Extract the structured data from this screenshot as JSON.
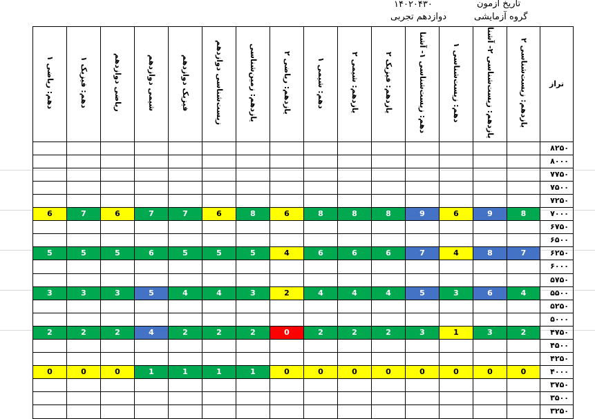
{
  "header": {
    "exam_date_label": "تاریخ آزمون",
    "exam_date": "۱۴۰۲۰۴۳۰",
    "group_label": "گروه آزمایشی",
    "group": "دوازدهم تجربی"
  },
  "table": {
    "level_header": "تراز",
    "subjects": [
      "یازدهم: زیست‌شناسی ۲",
      "یازدهم: زیست‌شناسی ۲- آشنا",
      "دهم: زیست‌شناسی ۱",
      "دهم: زیست‌شناسی ۱- آشنا",
      "یازدهم: فیزیک ۲",
      "یازدهم: شیمی ۲",
      "دهم: شیمی ۱",
      "یازدهم: ریاضی ۲",
      "یازدهم: زمین‌شناسی",
      "زیست‌شناسی دوازدهم",
      "فیزیک دوازدهم",
      "شیمی دوازدهم",
      "ریاضی دوازدهم",
      "دهم: فیزیک ۱",
      "دهم: ریاضی ۱"
    ],
    "rows": [
      {
        "level": "۸۲۵۰",
        "cells": []
      },
      {
        "level": "۸۰۰۰",
        "cells": []
      },
      {
        "level": "۷۷۵۰",
        "cells": []
      },
      {
        "level": "۷۵۰۰",
        "cells": []
      },
      {
        "level": "۷۲۵۰",
        "cells": []
      },
      {
        "level": "۷۰۰۰",
        "cells": [
          {
            "v": "8",
            "c": "g"
          },
          {
            "v": "9",
            "c": "b"
          },
          {
            "v": "6",
            "c": "y"
          },
          {
            "v": "9",
            "c": "b"
          },
          {
            "v": "8",
            "c": "g"
          },
          {
            "v": "8",
            "c": "g"
          },
          {
            "v": "8",
            "c": "g"
          },
          {
            "v": "6",
            "c": "y"
          },
          {
            "v": "8",
            "c": "g"
          },
          {
            "v": "6",
            "c": "y"
          },
          {
            "v": "7",
            "c": "g"
          },
          {
            "v": "7",
            "c": "g"
          },
          {
            "v": "6",
            "c": "y"
          },
          {
            "v": "7",
            "c": "g"
          },
          {
            "v": "6",
            "c": "y"
          }
        ]
      },
      {
        "level": "۶۷۵۰",
        "cells": []
      },
      {
        "level": "۶۵۰۰",
        "cells": []
      },
      {
        "level": "۶۲۵۰",
        "cells": [
          {
            "v": "7",
            "c": "b"
          },
          {
            "v": "8",
            "c": "b"
          },
          {
            "v": "4",
            "c": "y"
          },
          {
            "v": "7",
            "c": "b"
          },
          {
            "v": "6",
            "c": "g"
          },
          {
            "v": "6",
            "c": "g"
          },
          {
            "v": "6",
            "c": "g"
          },
          {
            "v": "4",
            "c": "y"
          },
          {
            "v": "5",
            "c": "g"
          },
          {
            "v": "5",
            "c": "g"
          },
          {
            "v": "5",
            "c": "g"
          },
          {
            "v": "6",
            "c": "g"
          },
          {
            "v": "5",
            "c": "g"
          },
          {
            "v": "5",
            "c": "g"
          },
          {
            "v": "5",
            "c": "g"
          }
        ]
      },
      {
        "level": "۶۰۰۰",
        "cells": []
      },
      {
        "level": "۵۷۵۰",
        "cells": []
      },
      {
        "level": "۵۵۰۰",
        "cells": [
          {
            "v": "4",
            "c": "g"
          },
          {
            "v": "6",
            "c": "b"
          },
          {
            "v": "3",
            "c": "g"
          },
          {
            "v": "5",
            "c": "b"
          },
          {
            "v": "4",
            "c": "g"
          },
          {
            "v": "4",
            "c": "g"
          },
          {
            "v": "4",
            "c": "g"
          },
          {
            "v": "2",
            "c": "y"
          },
          {
            "v": "3",
            "c": "g"
          },
          {
            "v": "4",
            "c": "g"
          },
          {
            "v": "4",
            "c": "g"
          },
          {
            "v": "5",
            "c": "b"
          },
          {
            "v": "3",
            "c": "g"
          },
          {
            "v": "3",
            "c": "g"
          },
          {
            "v": "3",
            "c": "g"
          }
        ]
      },
      {
        "level": "۵۲۵۰",
        "cells": []
      },
      {
        "level": "۵۰۰۰",
        "cells": []
      },
      {
        "level": "۴۷۵۰",
        "cells": [
          {
            "v": "2",
            "c": "g"
          },
          {
            "v": "3",
            "c": "g"
          },
          {
            "v": "1",
            "c": "y"
          },
          {
            "v": "3",
            "c": "g"
          },
          {
            "v": "2",
            "c": "g"
          },
          {
            "v": "2",
            "c": "g"
          },
          {
            "v": "2",
            "c": "g"
          },
          {
            "v": "0",
            "c": "r"
          },
          {
            "v": "2",
            "c": "g"
          },
          {
            "v": "2",
            "c": "g"
          },
          {
            "v": "2",
            "c": "g"
          },
          {
            "v": "4",
            "c": "b"
          },
          {
            "v": "2",
            "c": "g"
          },
          {
            "v": "2",
            "c": "g"
          },
          {
            "v": "2",
            "c": "g"
          }
        ]
      },
      {
        "level": "۴۵۰۰",
        "cells": []
      },
      {
        "level": "۴۲۵۰",
        "cells": []
      },
      {
        "level": "۴۰۰۰",
        "cells": [
          {
            "v": "0",
            "c": "y"
          },
          {
            "v": "0",
            "c": "y"
          },
          {
            "v": "0",
            "c": "y"
          },
          {
            "v": "0",
            "c": "y"
          },
          {
            "v": "0",
            "c": "y"
          },
          {
            "v": "0",
            "c": "y"
          },
          {
            "v": "0",
            "c": "y"
          },
          {
            "v": "0",
            "c": "y"
          },
          {
            "v": "1",
            "c": "g"
          },
          {
            "v": "1",
            "c": "g"
          },
          {
            "v": "1",
            "c": "g"
          },
          {
            "v": "1",
            "c": "g"
          },
          {
            "v": "0",
            "c": "y"
          },
          {
            "v": "0",
            "c": "y"
          },
          {
            "v": "0",
            "c": "y"
          }
        ]
      },
      {
        "level": "۳۷۵۰",
        "cells": []
      },
      {
        "level": "۳۵۰۰",
        "cells": []
      },
      {
        "level": "۳۲۵۰",
        "cells": []
      }
    ]
  },
  "colors": {
    "green": "#00a94f",
    "yellow": "#ffff00",
    "blue": "#4472c4",
    "red": "#ff0000"
  }
}
